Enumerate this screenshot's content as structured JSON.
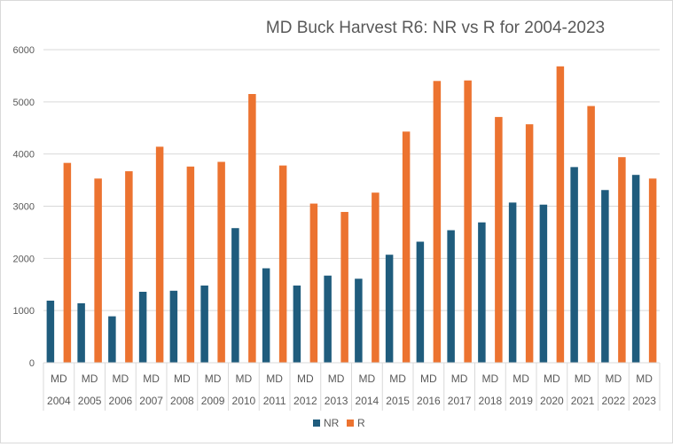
{
  "chart_data": {
    "type": "bar",
    "title": "MD Buck Harvest R6: NR vs R for 2004-2023",
    "xlabel": "",
    "ylabel": "",
    "ylim": [
      0,
      6000
    ],
    "yticks": [
      0,
      1000,
      2000,
      3000,
      4000,
      5000,
      6000
    ],
    "grid": true,
    "legend_position": "bottom",
    "category_group_label": "MD",
    "categories": [
      "2004",
      "2005",
      "2006",
      "2007",
      "2008",
      "2009",
      "2010",
      "2011",
      "2012",
      "2013",
      "2014",
      "2015",
      "2016",
      "2017",
      "2018",
      "2019",
      "2020",
      "2021",
      "2022",
      "2023"
    ],
    "series": [
      {
        "name": "NR",
        "color": "#1f5c7d",
        "values": [
          1190,
          1140,
          890,
          1360,
          1380,
          1480,
          2580,
          1810,
          1480,
          1670,
          1610,
          2070,
          2320,
          2540,
          2690,
          3070,
          3030,
          3750,
          3310,
          3600
        ]
      },
      {
        "name": "R",
        "color": "#ec7330",
        "values": [
          3830,
          3530,
          3670,
          4140,
          3760,
          3850,
          5150,
          3780,
          3050,
          2890,
          3260,
          4430,
          5400,
          5410,
          4710,
          4570,
          5680,
          4920,
          3940,
          3530
        ]
      }
    ]
  }
}
